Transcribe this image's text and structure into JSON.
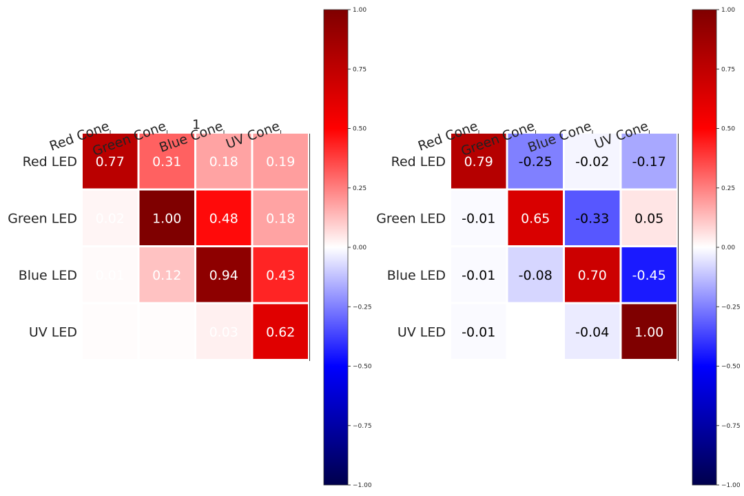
{
  "chart_data": [
    {
      "type": "heatmap",
      "title": "1",
      "columns": [
        "Red Cone",
        "Green Cone",
        "Blue Cone",
        "UV Cone"
      ],
      "rows": [
        "Red LED",
        "Green LED",
        "Blue LED",
        "UV LED"
      ],
      "values": [
        [
          0.77,
          0.31,
          0.18,
          0.19
        ],
        [
          0.02,
          1.0,
          0.48,
          0.18
        ],
        [
          0.01,
          0.12,
          0.94,
          0.43
        ],
        [
          0.005,
          0.005,
          0.03,
          0.62
        ]
      ],
      "labels": [
        [
          "0.77",
          "0.31",
          "0.18",
          "0.19"
        ],
        [
          "0.02",
          "1.00",
          "0.48",
          "0.18"
        ],
        [
          "0.01",
          "0.12",
          "0.94",
          "0.43"
        ],
        [
          "",
          "",
          "0.03",
          "0.62"
        ]
      ],
      "colormap": "seismic",
      "vmin": -1,
      "vmax": 1,
      "colorbar_ticks": [
        {
          "value": 1,
          "label": "1.00"
        },
        {
          "value": 0.75,
          "label": "0.75"
        },
        {
          "value": 0.5,
          "label": "0.50"
        },
        {
          "value": 0.25,
          "label": "0.25"
        },
        {
          "value": 0,
          "label": "0.00"
        },
        {
          "value": -0.25,
          "label": "−0.25"
        },
        {
          "value": -0.5,
          "label": "−0.50"
        },
        {
          "value": -0.75,
          "label": "−0.75"
        },
        {
          "value": -1,
          "label": "−1.00"
        }
      ]
    },
    {
      "type": "heatmap",
      "title": "",
      "columns": [
        "Red Cone",
        "Green Cone",
        "Blue Cone",
        "UV Cone"
      ],
      "rows": [
        "Red LED",
        "Green LED",
        "Blue LED",
        "UV LED"
      ],
      "values": [
        [
          0.79,
          -0.25,
          -0.02,
          -0.17
        ],
        [
          -0.01,
          0.65,
          -0.33,
          0.05
        ],
        [
          -0.01,
          -0.08,
          0.7,
          -0.45
        ],
        [
          -0.01,
          0.0,
          -0.04,
          1.0
        ]
      ],
      "labels": [
        [
          "0.79",
          "-0.25",
          "-0.02",
          "-0.17"
        ],
        [
          "-0.01",
          "0.65",
          "-0.33",
          "0.05"
        ],
        [
          "-0.01",
          "-0.08",
          "0.70",
          "-0.45"
        ],
        [
          "-0.01",
          "",
          "-0.04",
          "1.00"
        ]
      ],
      "colormap": "seismic",
      "vmin": -1,
      "vmax": 1,
      "colorbar_ticks": [
        {
          "value": 1,
          "label": "1.00"
        },
        {
          "value": 0.75,
          "label": "0.75"
        },
        {
          "value": 0.5,
          "label": "0.50"
        },
        {
          "value": 0.25,
          "label": "0.25"
        },
        {
          "value": 0,
          "label": "0.00"
        },
        {
          "value": -0.25,
          "label": "−0.25"
        },
        {
          "value": -0.5,
          "label": "−0.50"
        },
        {
          "value": -0.75,
          "label": "−0.75"
        },
        {
          "value": -1,
          "label": "−1.00"
        }
      ]
    }
  ]
}
